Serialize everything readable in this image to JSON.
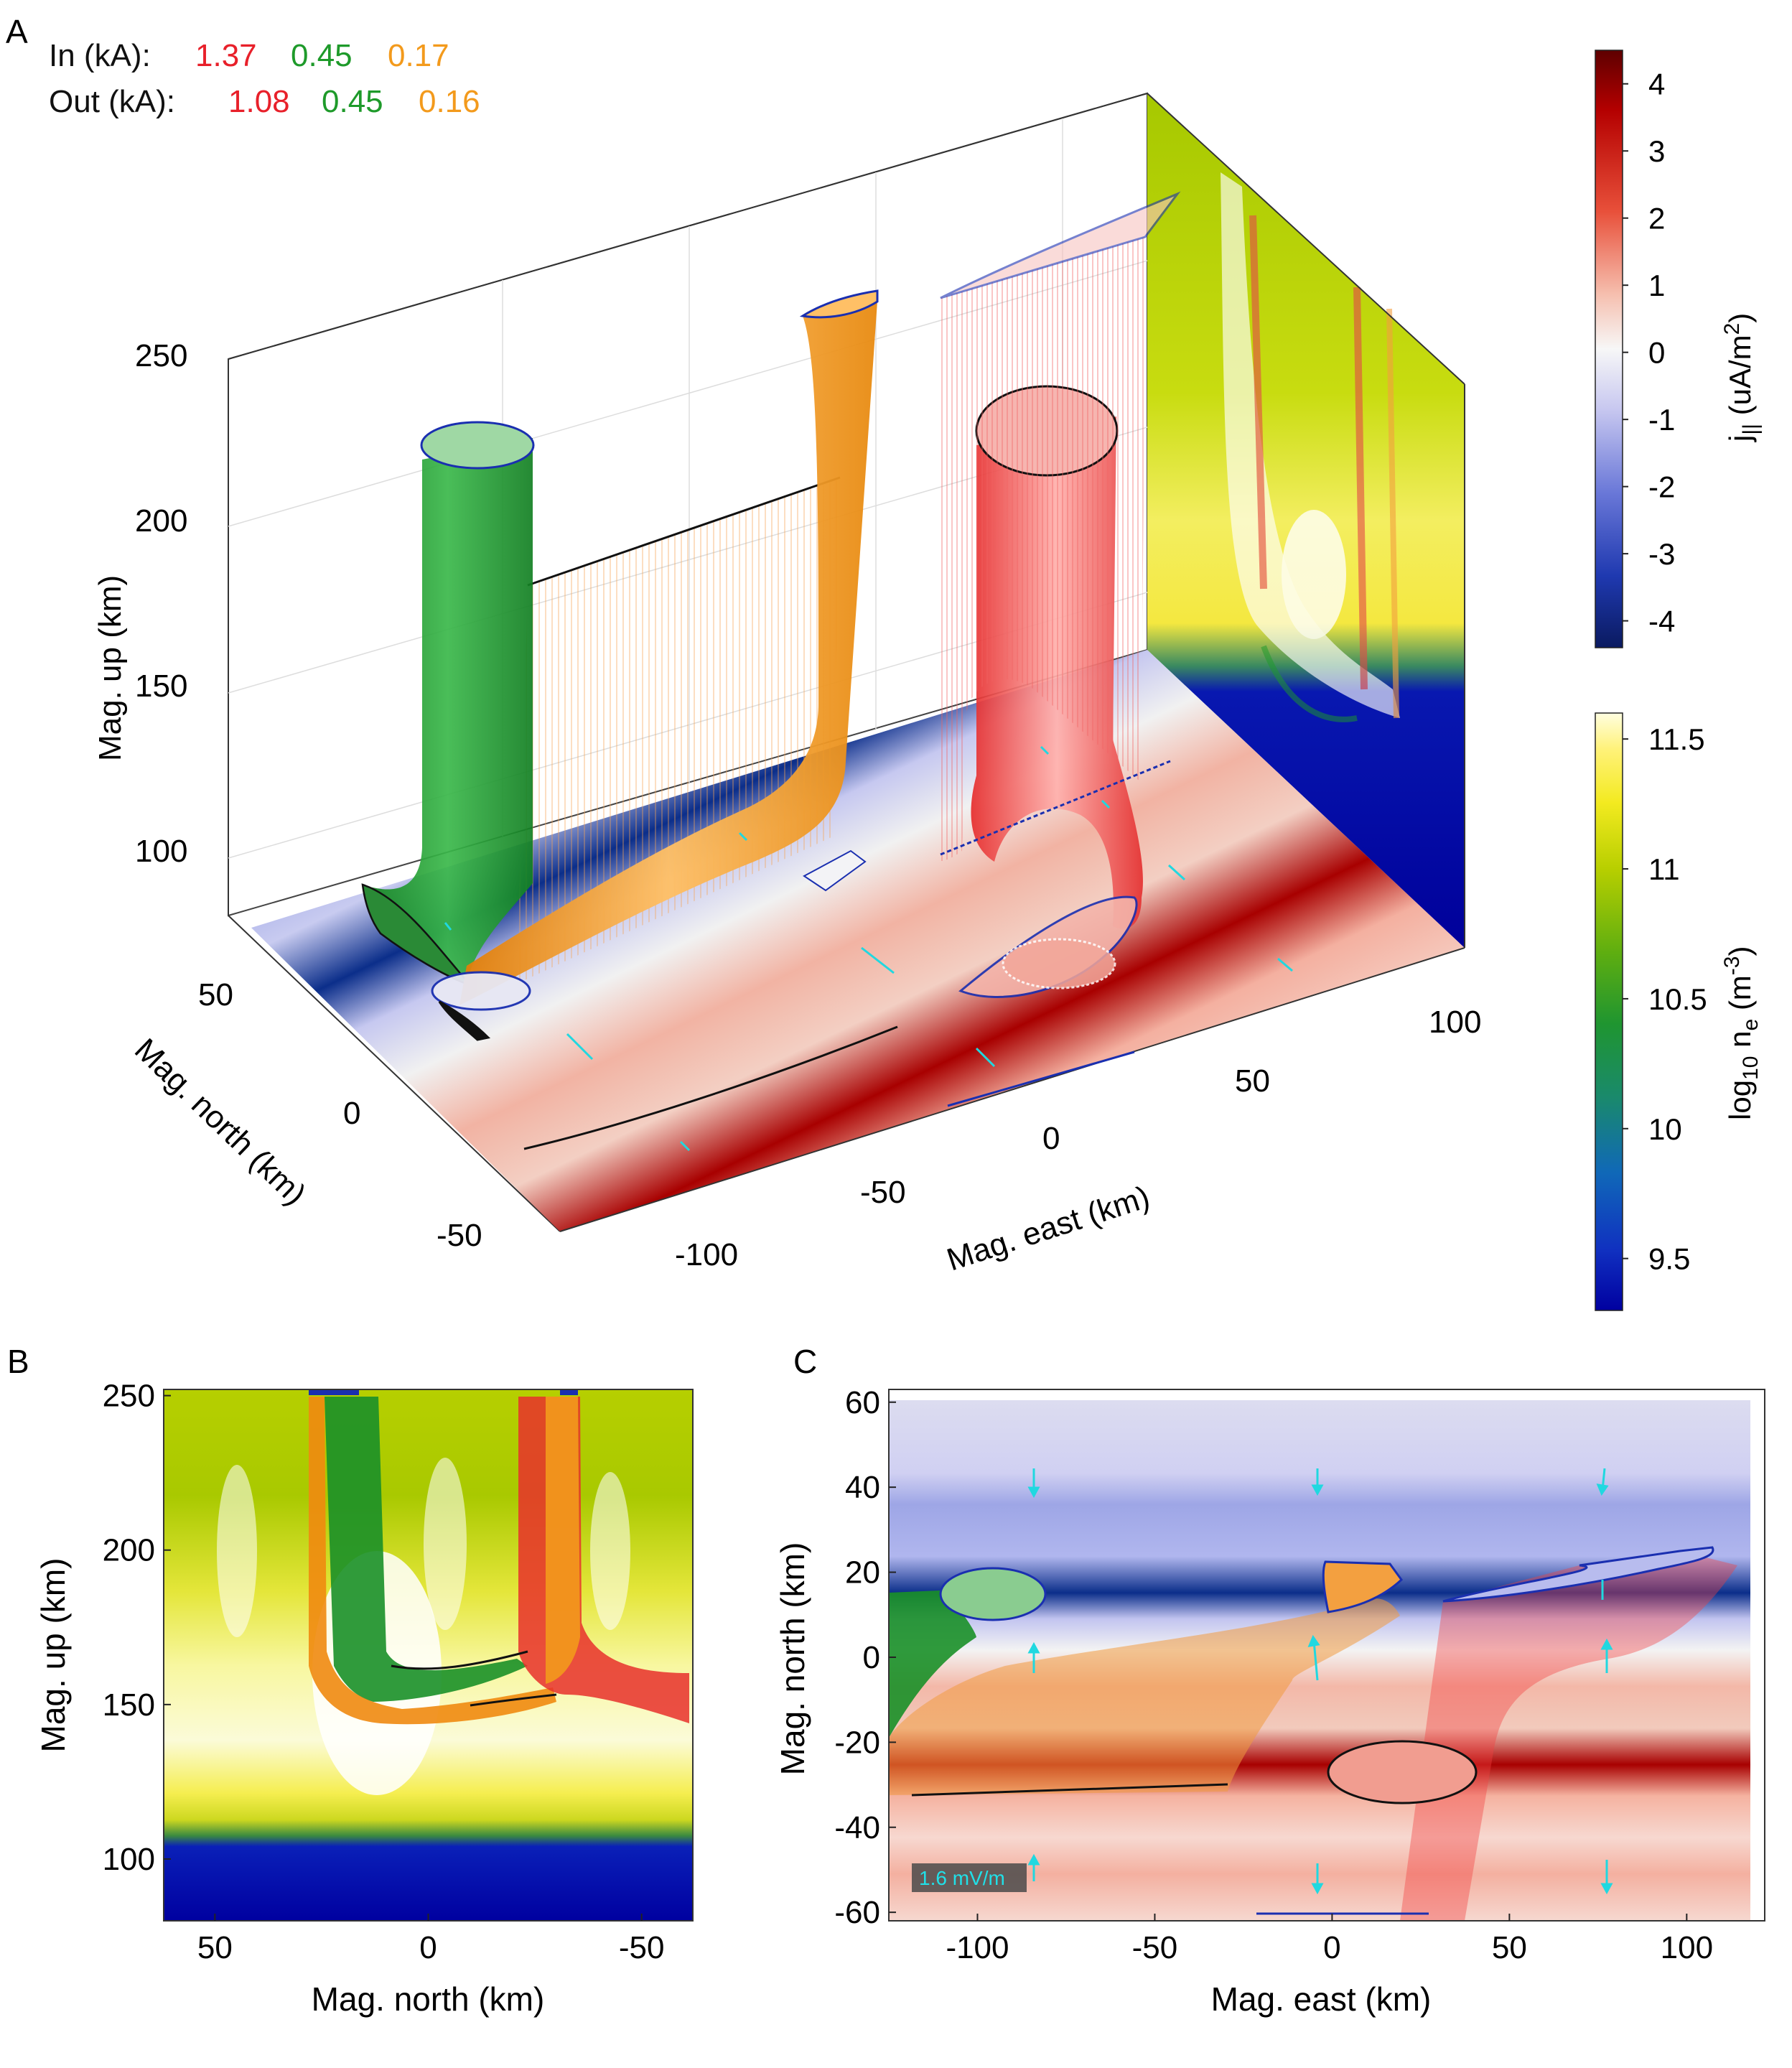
{
  "panels": {
    "a": {
      "letter": "A"
    },
    "b": {
      "letter": "B"
    },
    "c": {
      "letter": "C"
    }
  },
  "currents": {
    "in_label": "In (kA):",
    "out_label": "Out (kA):",
    "in_values": [
      "1.37",
      "0.45",
      "0.17"
    ],
    "out_values": [
      "1.08",
      "0.45",
      "0.16"
    ],
    "value_colors": [
      "#e8202a",
      "#1e9a2a",
      "#f39a1c"
    ]
  },
  "colorbars": {
    "jpar": {
      "label_main": "j",
      "label_sub": "||",
      "label_unit": " (uA/m",
      "label_sup": "2",
      "label_close": ")",
      "ticks": [
        "4",
        "3",
        "2",
        "1",
        "0",
        "-1",
        "-2",
        "-3",
        "-4"
      ],
      "range": [
        -4.4,
        4.5
      ]
    },
    "ne": {
      "label_main": "log",
      "label_sub": "10",
      "label_mid": " n",
      "label_sub2": "e",
      "label_unit": " (m",
      "label_sup": "-3",
      "label_close": ")",
      "ticks": [
        "11.5",
        "11",
        "10.5",
        "10",
        "9.5"
      ],
      "range": [
        9.3,
        11.6
      ]
    }
  },
  "chart_data": [
    {
      "panel": "A",
      "type": "3d-surface",
      "zlabel": "Mag. up (km)",
      "ylabel": "Mag. north (km)",
      "xlabel": "Mag. east (km)",
      "zticks": [
        "250",
        "200",
        "150",
        "100"
      ],
      "yticks": [
        "50",
        "0",
        "-50"
      ],
      "xticks": [
        "-100",
        "-50",
        "0",
        "50",
        "100"
      ],
      "zlim": [
        80,
        260
      ],
      "tubes": [
        {
          "name": "green",
          "color": "#1e9a2a"
        },
        {
          "name": "orange",
          "color": "#f39a1c"
        },
        {
          "name": "red",
          "color": "#e8202a"
        }
      ]
    },
    {
      "panel": "B",
      "type": "heatmap",
      "xlabel": "Mag. north (km)",
      "ylabel": "Mag. up (km)",
      "xticks": [
        "50",
        "0",
        "-50"
      ],
      "yticks": [
        "250",
        "200",
        "150",
        "100"
      ],
      "xlim": [
        62,
        -62
      ],
      "ylim": [
        80,
        252
      ]
    },
    {
      "panel": "C",
      "type": "heatmap",
      "xlabel": "Mag. east (km)",
      "ylabel": "Mag. north (km)",
      "xticks": [
        "-100",
        "-50",
        "0",
        "50",
        "100"
      ],
      "yticks": [
        "60",
        "40",
        "20",
        "0",
        "-20",
        "-40",
        "-60"
      ],
      "xlim": [
        -125,
        122
      ],
      "ylim": [
        -62,
        63
      ],
      "scale_label": "1.6 mV/m"
    }
  ]
}
